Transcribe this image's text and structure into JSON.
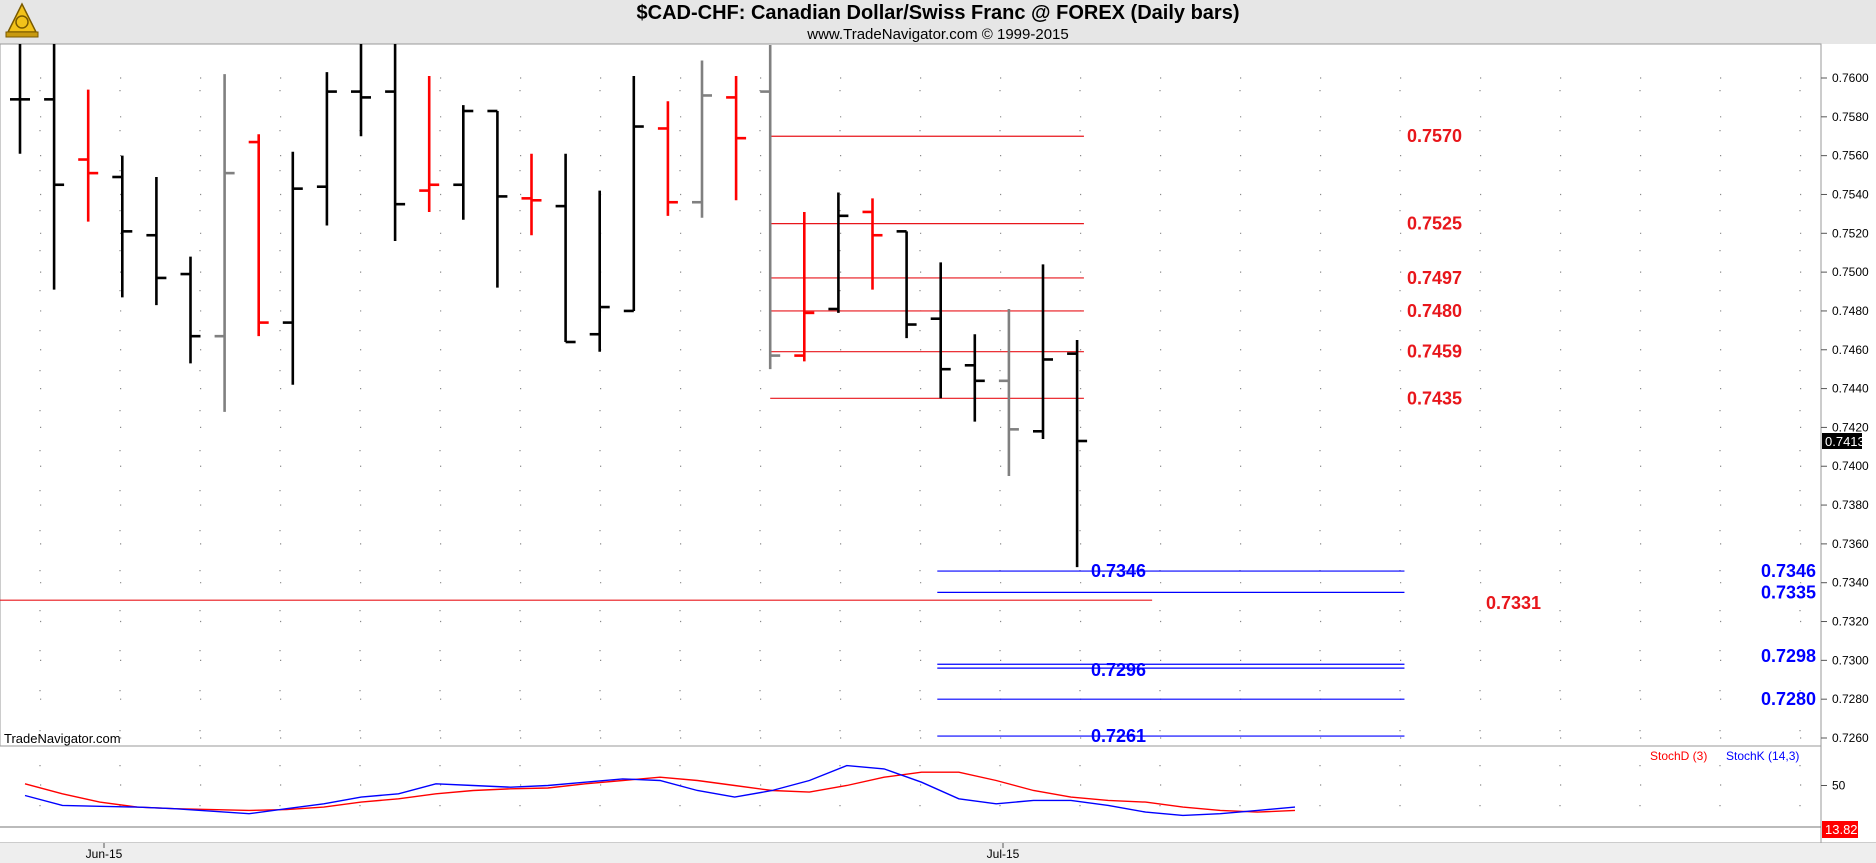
{
  "header": {
    "title": "$CAD-CHF:  Canadian Dollar/Swiss Franc @ FOREX  (Daily bars)",
    "subtitle": "www.TradeNavigator.com © 1999-2015",
    "watermark": "TradeNavigator.com"
  },
  "colors": {
    "up_bar": "#000000",
    "down_bar": "#ff0000",
    "neutral_bar": "#808080",
    "resistance": "#e8161b",
    "support": "#0000ff",
    "stoch_d": "#ff0000",
    "stoch_k": "#0000ff",
    "last_price_bg": "#000000",
    "stoch_last_bg": "#ff0000"
  },
  "chart_data": [
    {
      "type": "ohlc",
      "x_tick_labels": [
        "Jun-15",
        "Jul-15"
      ],
      "y_tick_labels": [
        "0.7600",
        "0.7580",
        "0.7560",
        "0.7540",
        "0.7520",
        "0.7500",
        "0.7480",
        "0.7460",
        "0.7440",
        "0.7420",
        "0.7400",
        "0.7380",
        "0.7360",
        "0.7340",
        "0.7320",
        "0.7300",
        "0.7280",
        "0.7260"
      ],
      "ylim": [
        0.7245,
        0.7618
      ],
      "last_price": "0.7413",
      "bars": [
        {
          "c": "up",
          "o": 0.7589,
          "h": 0.7618,
          "l": 0.7561,
          "cl": 0.7589
        },
        {
          "c": "up",
          "o": 0.7589,
          "h": 0.7618,
          "l": 0.7491,
          "cl": 0.7545
        },
        {
          "c": "dn",
          "o": 0.7558,
          "h": 0.7594,
          "l": 0.7526,
          "cl": 0.7551
        },
        {
          "c": "up",
          "o": 0.7549,
          "h": 0.756,
          "l": 0.7487,
          "cl": 0.7521
        },
        {
          "c": "up",
          "o": 0.7519,
          "h": 0.7549,
          "l": 0.7483,
          "cl": 0.7497
        },
        {
          "c": "up",
          "o": 0.7499,
          "h": 0.7508,
          "l": 0.7453,
          "cl": 0.7467
        },
        {
          "c": "nt",
          "o": 0.7467,
          "h": 0.7602,
          "l": 0.7428,
          "cl": 0.7551
        },
        {
          "c": "dn",
          "o": 0.7567,
          "h": 0.7571,
          "l": 0.7467,
          "cl": 0.7474
        },
        {
          "c": "up",
          "o": 0.7474,
          "h": 0.7562,
          "l": 0.7442,
          "cl": 0.7543
        },
        {
          "c": "up",
          "o": 0.7544,
          "h": 0.7603,
          "l": 0.7524,
          "cl": 0.7593
        },
        {
          "c": "up",
          "o": 0.7593,
          "h": 0.7618,
          "l": 0.757,
          "cl": 0.759
        },
        {
          "c": "up",
          "o": 0.7593,
          "h": 0.7618,
          "l": 0.7516,
          "cl": 0.7535
        },
        {
          "c": "dn",
          "o": 0.7542,
          "h": 0.7601,
          "l": 0.7531,
          "cl": 0.7545
        },
        {
          "c": "up",
          "o": 0.7545,
          "h": 0.7586,
          "l": 0.7527,
          "cl": 0.7583
        },
        {
          "c": "up",
          "o": 0.7583,
          "h": 0.7583,
          "l": 0.7492,
          "cl": 0.7539
        },
        {
          "c": "dn",
          "o": 0.7538,
          "h": 0.7561,
          "l": 0.7519,
          "cl": 0.7537
        },
        {
          "c": "up",
          "o": 0.7534,
          "h": 0.7561,
          "l": 0.7464,
          "cl": 0.7464
        },
        {
          "c": "up",
          "o": 0.7468,
          "h": 0.7542,
          "l": 0.7459,
          "cl": 0.7482
        },
        {
          "c": "up",
          "o": 0.748,
          "h": 0.7601,
          "l": 0.748,
          "cl": 0.7575
        },
        {
          "c": "dn",
          "o": 0.7574,
          "h": 0.7588,
          "l": 0.7529,
          "cl": 0.7536
        },
        {
          "c": "nt",
          "o": 0.7536,
          "h": 0.7609,
          "l": 0.7528,
          "cl": 0.7591
        },
        {
          "c": "dn",
          "o": 0.759,
          "h": 0.7601,
          "l": 0.7537,
          "cl": 0.7569
        },
        {
          "c": "nt",
          "o": 0.7593,
          "h": 0.7617,
          "l": 0.745,
          "cl": 0.7457
        },
        {
          "c": "dn",
          "o": 0.7457,
          "h": 0.7531,
          "l": 0.7454,
          "cl": 0.7479
        },
        {
          "c": "up",
          "o": 0.7481,
          "h": 0.7541,
          "l": 0.7479,
          "cl": 0.7529
        },
        {
          "c": "dn",
          "o": 0.7531,
          "h": 0.7538,
          "l": 0.7491,
          "cl": 0.7519
        },
        {
          "c": "up",
          "o": 0.7521,
          "h": 0.7521,
          "l": 0.7466,
          "cl": 0.7473
        },
        {
          "c": "up",
          "o": 0.7476,
          "h": 0.7505,
          "l": 0.7435,
          "cl": 0.745
        },
        {
          "c": "up",
          "o": 0.7452,
          "h": 0.7468,
          "l": 0.7423,
          "cl": 0.7444
        },
        {
          "c": "nt",
          "o": 0.7444,
          "h": 0.7481,
          "l": 0.7395,
          "cl": 0.7419
        },
        {
          "c": "up",
          "o": 0.7418,
          "h": 0.7504,
          "l": 0.7414,
          "cl": 0.7455
        },
        {
          "c": "up",
          "o": 0.7458,
          "h": 0.7465,
          "l": 0.7348,
          "cl": 0.7413
        }
      ],
      "levels": [
        {
          "v": 0.757,
          "label": "0.7570",
          "kind": "res",
          "from": 22,
          "to": 31.2
        },
        {
          "v": 0.7525,
          "label": "0.7525",
          "kind": "res",
          "from": 22,
          "to": 31.2
        },
        {
          "v": 0.7497,
          "label": "0.7497",
          "kind": "res",
          "from": 22,
          "to": 31.2
        },
        {
          "v": 0.748,
          "label": "0.7480",
          "kind": "res",
          "from": 22,
          "to": 31.2
        },
        {
          "v": 0.7459,
          "label": "0.7459",
          "kind": "res",
          "from": 22,
          "to": 31.2
        },
        {
          "v": 0.7435,
          "label": "0.7435",
          "kind": "res",
          "from": 22,
          "to": 31.2
        },
        {
          "v": 0.7331,
          "label": "0.7331",
          "kind": "res",
          "from": -0.8,
          "to": 33.2
        },
        {
          "v": 0.7346,
          "label": "0.7346",
          "kind": "sup",
          "from": 26.9,
          "to": 40.6,
          "label2": "0.7346"
        },
        {
          "v": 0.7335,
          "label": "0.7335",
          "kind": "sup",
          "from": 26.9,
          "to": 40.6
        },
        {
          "v": 0.7296,
          "label": "0.7296",
          "kind": "sup",
          "from": 26.9,
          "to": 40.6,
          "left": true
        },
        {
          "v": 0.7298,
          "label": "0.7298",
          "kind": "sup",
          "from": 26.9,
          "to": 40.6
        },
        {
          "v": 0.728,
          "label": "0.7280",
          "kind": "sup",
          "from": 26.9,
          "to": 40.6
        },
        {
          "v": 0.7261,
          "label": "0.7261",
          "kind": "sup",
          "from": 26.9,
          "to": 40.6,
          "left": true
        }
      ]
    },
    {
      "type": "line",
      "legend": [
        "StochD (3)",
        "StochK (14,3)"
      ],
      "y_tick_labels": [
        "50"
      ],
      "ylim": [
        0,
        100
      ],
      "last_value": "13.82",
      "series": [
        {
          "name": "StochD (3)",
          "values": [
            52,
            40,
            30,
            24,
            22,
            21,
            20,
            21,
            24,
            30,
            34,
            40,
            44,
            46,
            47,
            52,
            56,
            60,
            56,
            50,
            44,
            42,
            50,
            60,
            66,
            66,
            56,
            44,
            36,
            32,
            30,
            24,
            20,
            18,
            20
          ]
        },
        {
          "name": "StochK (14,3)",
          "values": [
            38,
            26,
            25,
            24,
            22,
            19,
            16,
            22,
            28,
            36,
            40,
            52,
            50,
            48,
            50,
            54,
            58,
            56,
            44,
            36,
            44,
            56,
            74,
            70,
            54,
            34,
            28,
            32,
            32,
            26,
            18,
            14,
            16,
            20,
            24
          ]
        }
      ]
    }
  ]
}
